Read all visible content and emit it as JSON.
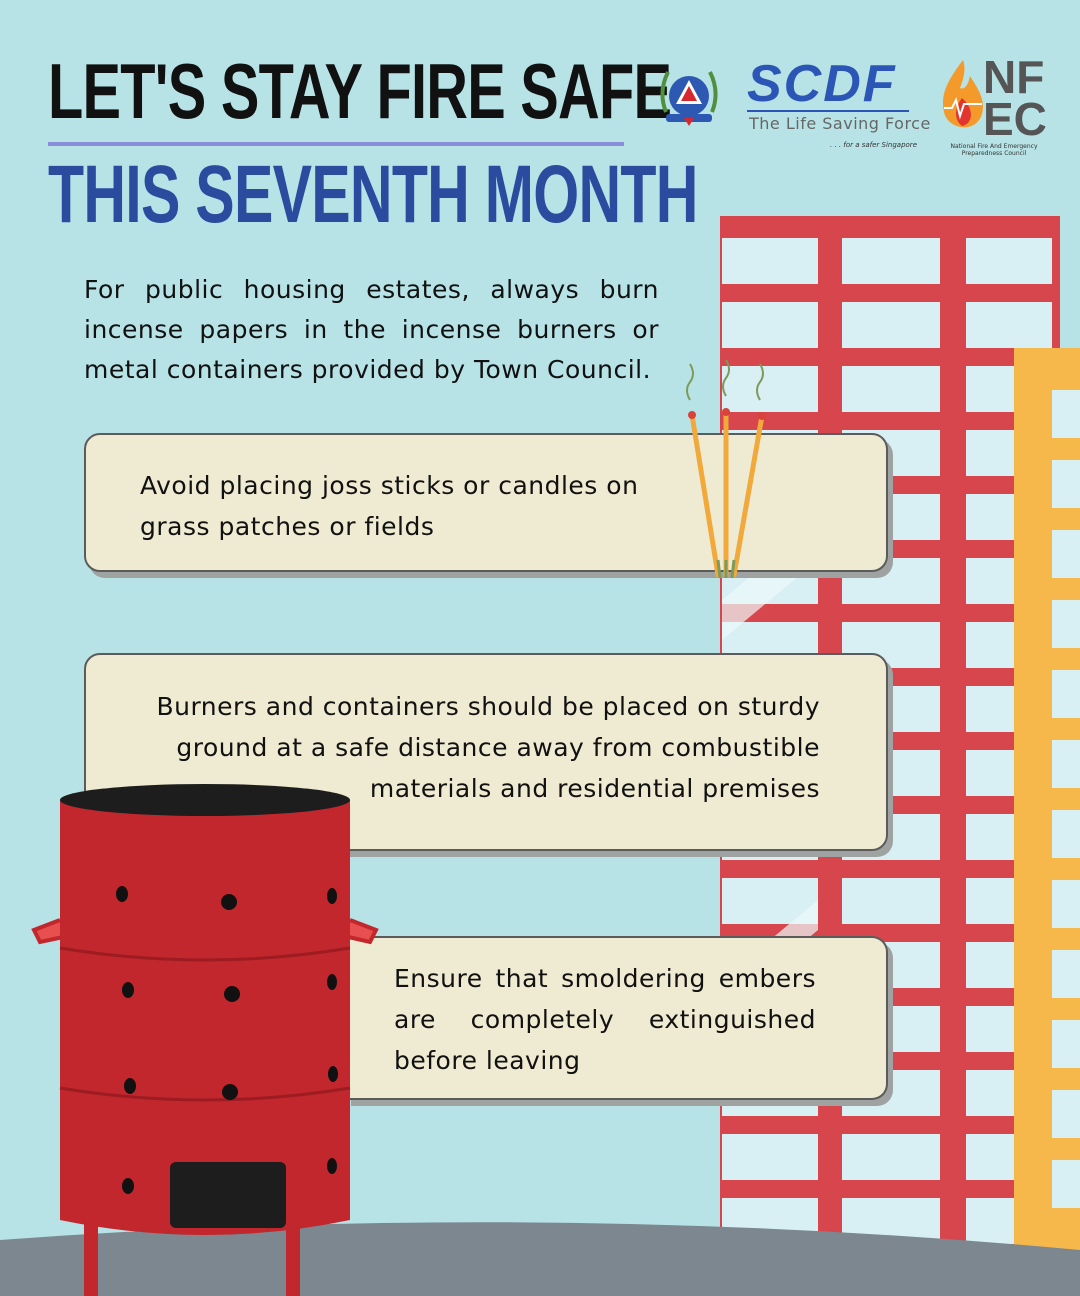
{
  "header": {
    "title_line1": "LET'S STAY FIRE SAFE",
    "title_line2": "THIS SEVENTH MONTH"
  },
  "logos": {
    "scdf_mark": "SCDF",
    "scdf_tagline": "The Life Saving Force",
    "scdf_subtagline": ". . . for a safer Singapore",
    "nfec_line1": "NF",
    "nfec_line2": "EC",
    "nfec_caption": "National Fire And Emergency Preparedness Council"
  },
  "intro": "For public housing estates, always burn incense papers in the incense burners or metal containers provided by Town Council.",
  "tips": [
    "Avoid placing joss sticks or candles on grass patches or fields",
    "Burners and containers should be placed on sturdy ground at a safe distance away from combustible materials and residential premises",
    "Ensure that smoldering embers are completely extinguished before leaving"
  ],
  "colors": {
    "background": "#b8e3e6",
    "title_dark": "#111111",
    "title_blue": "#2b4b9f",
    "building_red": "#d6464c",
    "building_yellow": "#f7b84b",
    "card": "#efead2",
    "burner_red": "#c1272d",
    "ground": "#7c8790"
  },
  "icons": [
    "ministry-crest-icon",
    "scdf-logo-icon",
    "nfec-flame-icon",
    "joss-sticks-icon",
    "incense-burner-icon"
  ]
}
